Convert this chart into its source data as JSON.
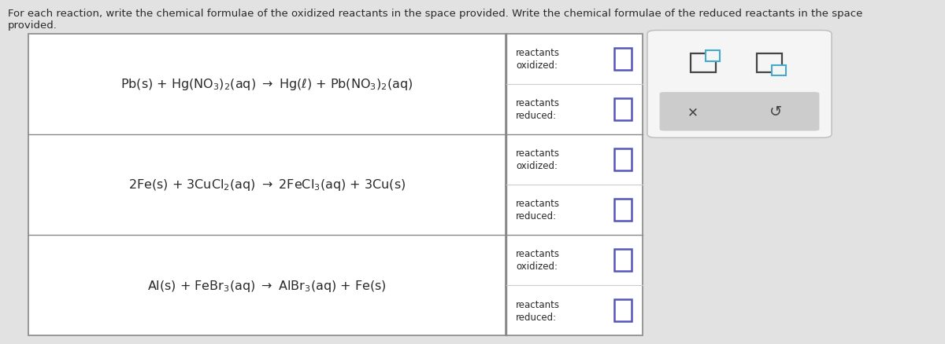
{
  "title_text": "For each reaction, write the chemical formulae of the oxidized reactants in the space provided. Write the chemical formulae of the reduced reactants in the space\nprovided.",
  "bg_color": "#e2e2e2",
  "table_bg": "#ffffff",
  "panel_bg": "#f5f5f5",
  "widget_bg": "#f5f5f5",
  "widget_btn_bg": "#cccccc",
  "reactions": [
    "Pb(s) + Hg$\\left(\\mathrm{NO_3}\\right)_2$(aq) $\\rightarrow$ Hg($\\ell$) + Pb$\\left(\\mathrm{NO_3}\\right)_2$(aq)",
    "2Fe(s) + 3CuCl$_2$(aq) $\\rightarrow$ 2FeCl$_3$(aq) + 3Cu(s)",
    "Al(s) + FeBr$_3$(aq) $\\rightarrow$ AlBr$_3$(aq) + Fe(s)"
  ],
  "text_color": "#2a2a2a",
  "label_color": "#2a2a2a",
  "checkbox_color": "#5555bb",
  "checkbox_fill": "#ffffff",
  "icon_color": "#44aacc",
  "icon_dark": "#444444",
  "tl": 0.03,
  "tr": 0.535,
  "pl": 0.536,
  "pr": 0.68,
  "wl": 0.695,
  "wr": 0.87,
  "tt": 0.9,
  "tb": 0.025,
  "reaction_fontsize": 11.5,
  "label_fontsize": 8.5,
  "title_fontsize": 9.5
}
